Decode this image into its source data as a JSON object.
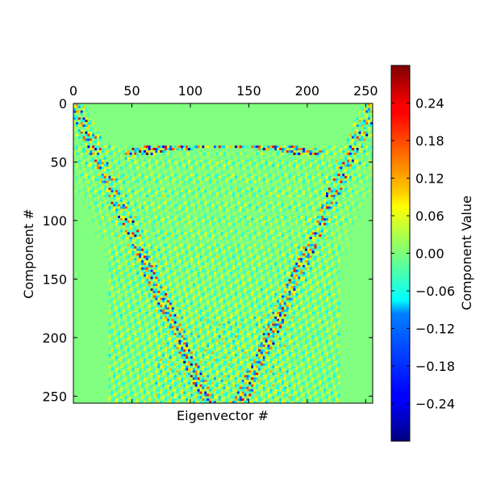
{
  "chart_data": {
    "type": "heatmap",
    "colormap": "jet",
    "xlabel": "Eigenvector #",
    "ylabel": "Component #",
    "xlim": [
      0,
      256
    ],
    "ylim": [
      0,
      256
    ],
    "x_ticks": [
      0,
      50,
      100,
      150,
      200,
      250
    ],
    "y_ticks": [
      0,
      50,
      100,
      150,
      200,
      250
    ],
    "x_tick_labels": [
      "0",
      "50",
      "100",
      "150",
      "200",
      "250"
    ],
    "y_tick_labels": [
      "0",
      "50",
      "100",
      "150",
      "200",
      "250"
    ],
    "x_axis_position": "top",
    "colorbar": {
      "label": "Component Value",
      "vmin": -0.3,
      "vmax": 0.3,
      "ticks": [
        0.24,
        0.18,
        0.12,
        0.06,
        0.0,
        -0.06,
        -0.12,
        -0.18,
        -0.24
      ],
      "tick_labels": [
        "0.24",
        "0.18",
        "0.12",
        "0.06",
        "0.00",
        "−0.06",
        "−0.12",
        "−0.18",
        "−0.24"
      ]
    },
    "pattern_note_visual_only": "Oscillatory +/- values in a symmetric fan pattern; near-zero (green) background; strong amplitudes at corners and central arcs near row 35."
  }
}
